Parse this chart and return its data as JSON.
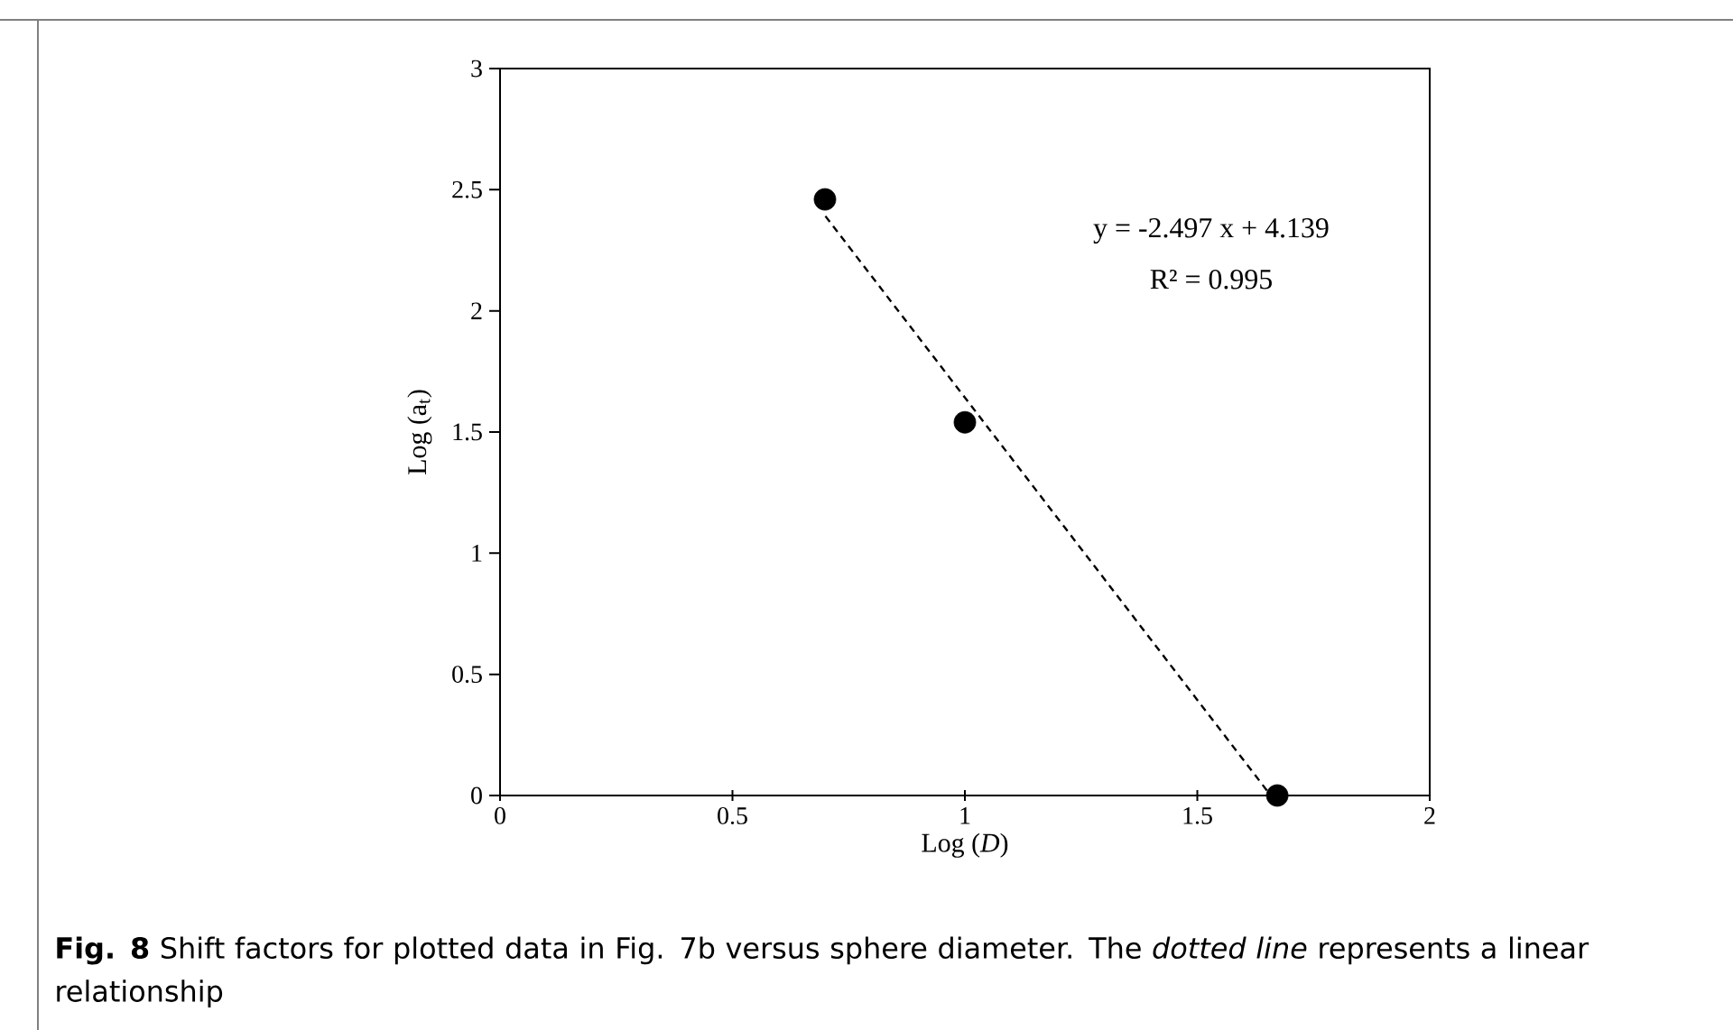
{
  "chart_data": {
    "type": "scatter",
    "xlabel": "Log (*D*)",
    "ylabel": "Log (a$_{t}$)",
    "xlim": [
      0,
      2
    ],
    "xticks": [
      0,
      0.5,
      1,
      1.5,
      2
    ],
    "ylim": [
      0,
      3
    ],
    "yticks": [
      0,
      0.5,
      1,
      1.5,
      2,
      2.5,
      3
    ],
    "grid": false,
    "series": [
      {
        "type": "scatter",
        "marker": "circle",
        "color": "#000000",
        "x": [
          0.699,
          1.0,
          1.672
        ],
        "values": [
          2.46,
          1.54,
          0.0
        ]
      },
      {
        "type": "line",
        "color": "#000000",
        "line_style": "dashed",
        "x": [
          0.7,
          1.658
        ],
        "values": [
          2.391,
          0.0
        ]
      }
    ],
    "annotations": [
      "y = -2.497 x + 4.139",
      "R² = 0.995",
      "**Fig. 8** Shift factors for plotted data in Fig. 7b versus sphere diameter. The *dotted line* represents a linear relationship"
    ]
  }
}
